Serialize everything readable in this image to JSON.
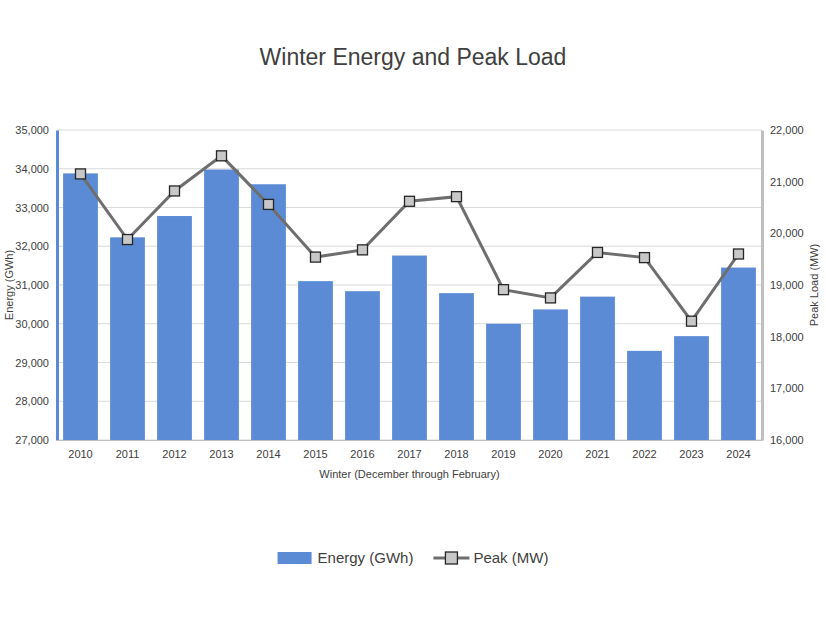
{
  "chart_data": {
    "type": "bar",
    "title": "Winter Energy and Peak Load",
    "xlabel": "Winter (December through February)",
    "ylabel": "Energy (GWh)",
    "y2label": "Peak Load (MW)",
    "categories": [
      "2010",
      "2011",
      "2012",
      "2013",
      "2014",
      "2015",
      "2016",
      "2017",
      "2018",
      "2019",
      "2020",
      "2021",
      "2022",
      "2023",
      "2024"
    ],
    "series": [
      {
        "name": "Energy (GWh)",
        "type": "bar",
        "color": "#5b8bd5",
        "values": [
          33880,
          32230,
          32780,
          33980,
          33600,
          31100,
          30840,
          31760,
          30790,
          30000,
          30370,
          30700,
          29300,
          29680,
          31450
        ]
      },
      {
        "name": "Peak (MW)",
        "type": "line",
        "axis": "y2",
        "color": "#6e6e6e",
        "marker": "square",
        "line_style": "solid",
        "values": [
          21150,
          19880,
          20820,
          21500,
          20560,
          19540,
          19680,
          20620,
          20710,
          18910,
          18750,
          19630,
          19530,
          18300,
          19600
        ]
      }
    ],
    "ylim": [
      27000,
      35000
    ],
    "yticks": [
      {
        "value": 27000,
        "label": "27,000"
      },
      {
        "value": 28000,
        "label": "28,000"
      },
      {
        "value": 29000,
        "label": "29,000"
      },
      {
        "value": 30000,
        "label": "30,000"
      },
      {
        "value": 31000,
        "label": "31,000"
      },
      {
        "value": 32000,
        "label": "32,000"
      },
      {
        "value": 33000,
        "label": "33,000"
      },
      {
        "value": 34000,
        "label": "34,000"
      },
      {
        "value": 35000,
        "label": "35,000"
      }
    ],
    "y2lim": [
      16000,
      22000
    ],
    "y2ticks": [
      {
        "value": 16000,
        "label": "16,000"
      },
      {
        "value": 17000,
        "label": "17,000"
      },
      {
        "value": 18000,
        "label": "18,000"
      },
      {
        "value": 19000,
        "label": "19,000"
      },
      {
        "value": 20000,
        "label": "20,000"
      },
      {
        "value": 21000,
        "label": "21,000"
      },
      {
        "value": 22000,
        "label": "22,000"
      }
    ],
    "grid": true,
    "legend": "bottom"
  }
}
